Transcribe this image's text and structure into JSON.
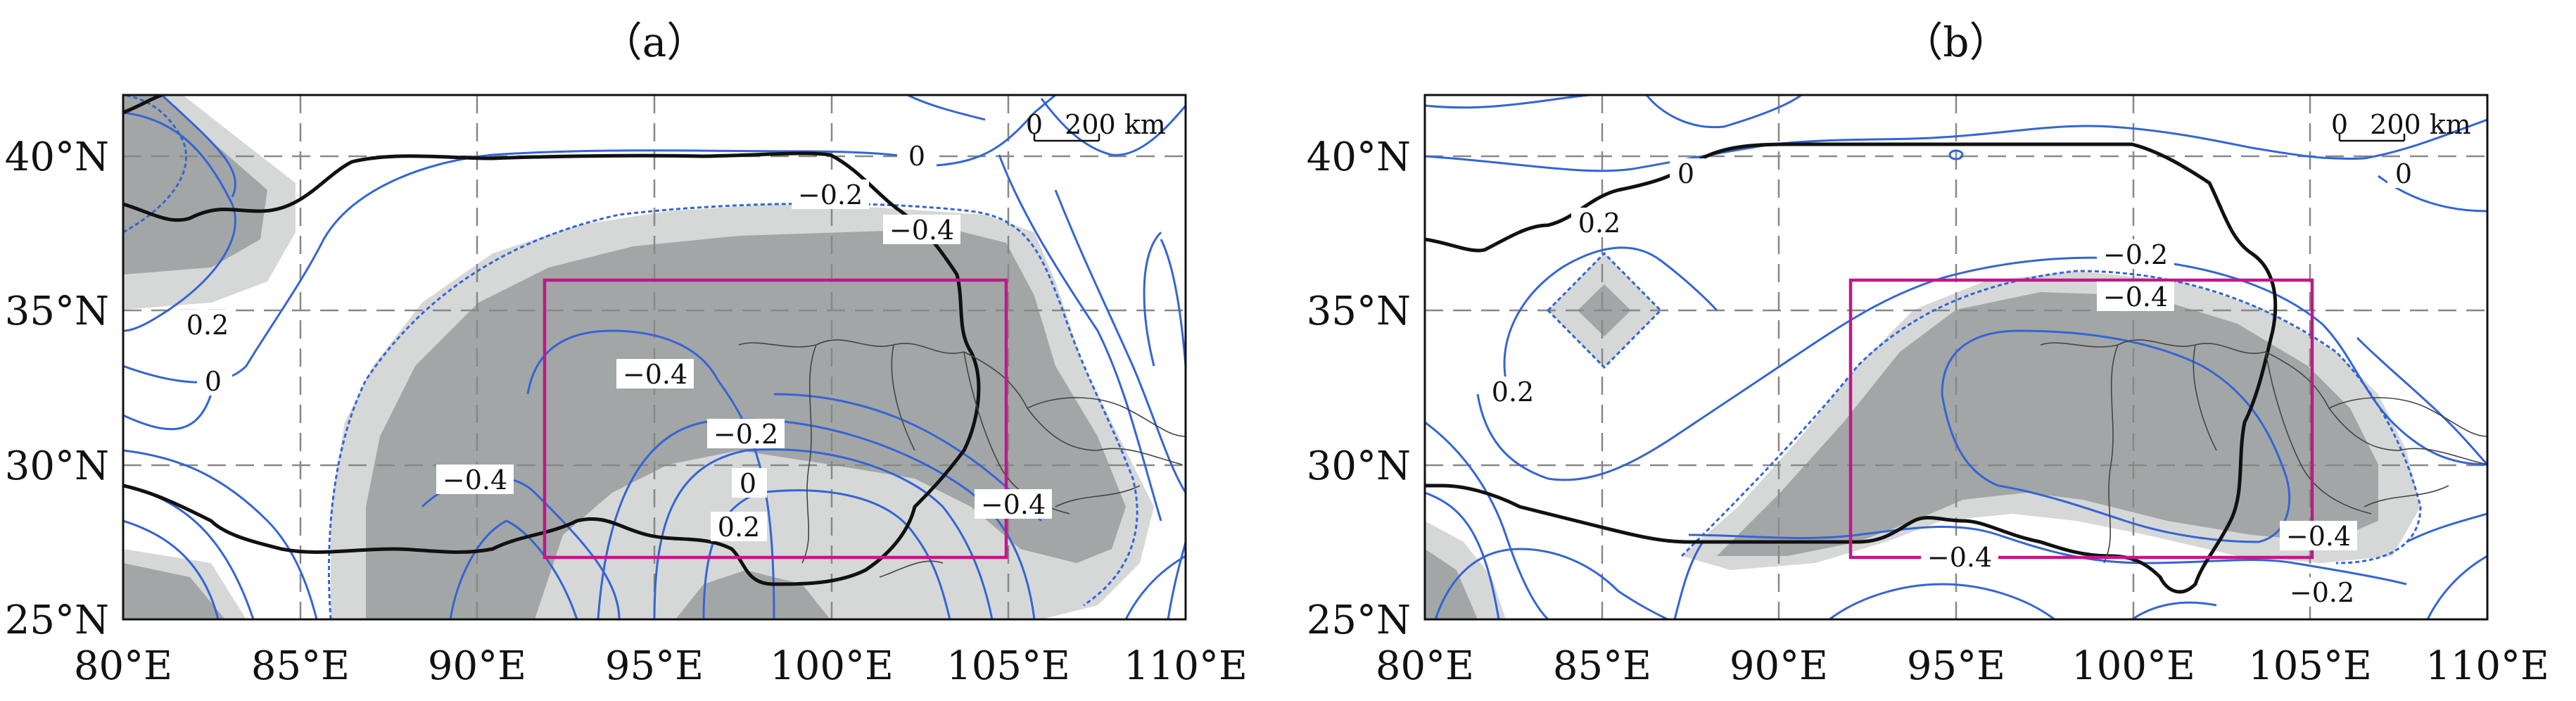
{
  "panels": [
    {
      "title": "（a）",
      "scalebar": {
        "zero": "0",
        "label": "200 km"
      },
      "contour_labels": [
        "0",
        "−0.2",
        "−0.4",
        "0.2",
        "0",
        "−0.4",
        "−0.2",
        "0",
        "−0.4",
        "0.2",
        "−0.4"
      ]
    },
    {
      "title": "（b）",
      "scalebar": {
        "zero": "0",
        "label": "200 km"
      },
      "contour_labels": [
        "0",
        "0.2",
        "0",
        "−0.2",
        "−0.4",
        "0.2",
        "−0.4",
        "−0.4",
        "−0.2"
      ]
    }
  ],
  "x_ticks": [
    "80°E",
    "85°E",
    "90°E",
    "95°E",
    "100°E",
    "105°E",
    "110°E"
  ],
  "y_ticks": [
    "40°N",
    "35°N",
    "30°N",
    "25°N"
  ],
  "colors": {
    "shade_dark": "#a3a6a6",
    "shade_light": "#d6d8d8",
    "contour": "#3465d4",
    "boundary": "#111111",
    "box": "#c0188a",
    "grid": "#888888"
  }
}
